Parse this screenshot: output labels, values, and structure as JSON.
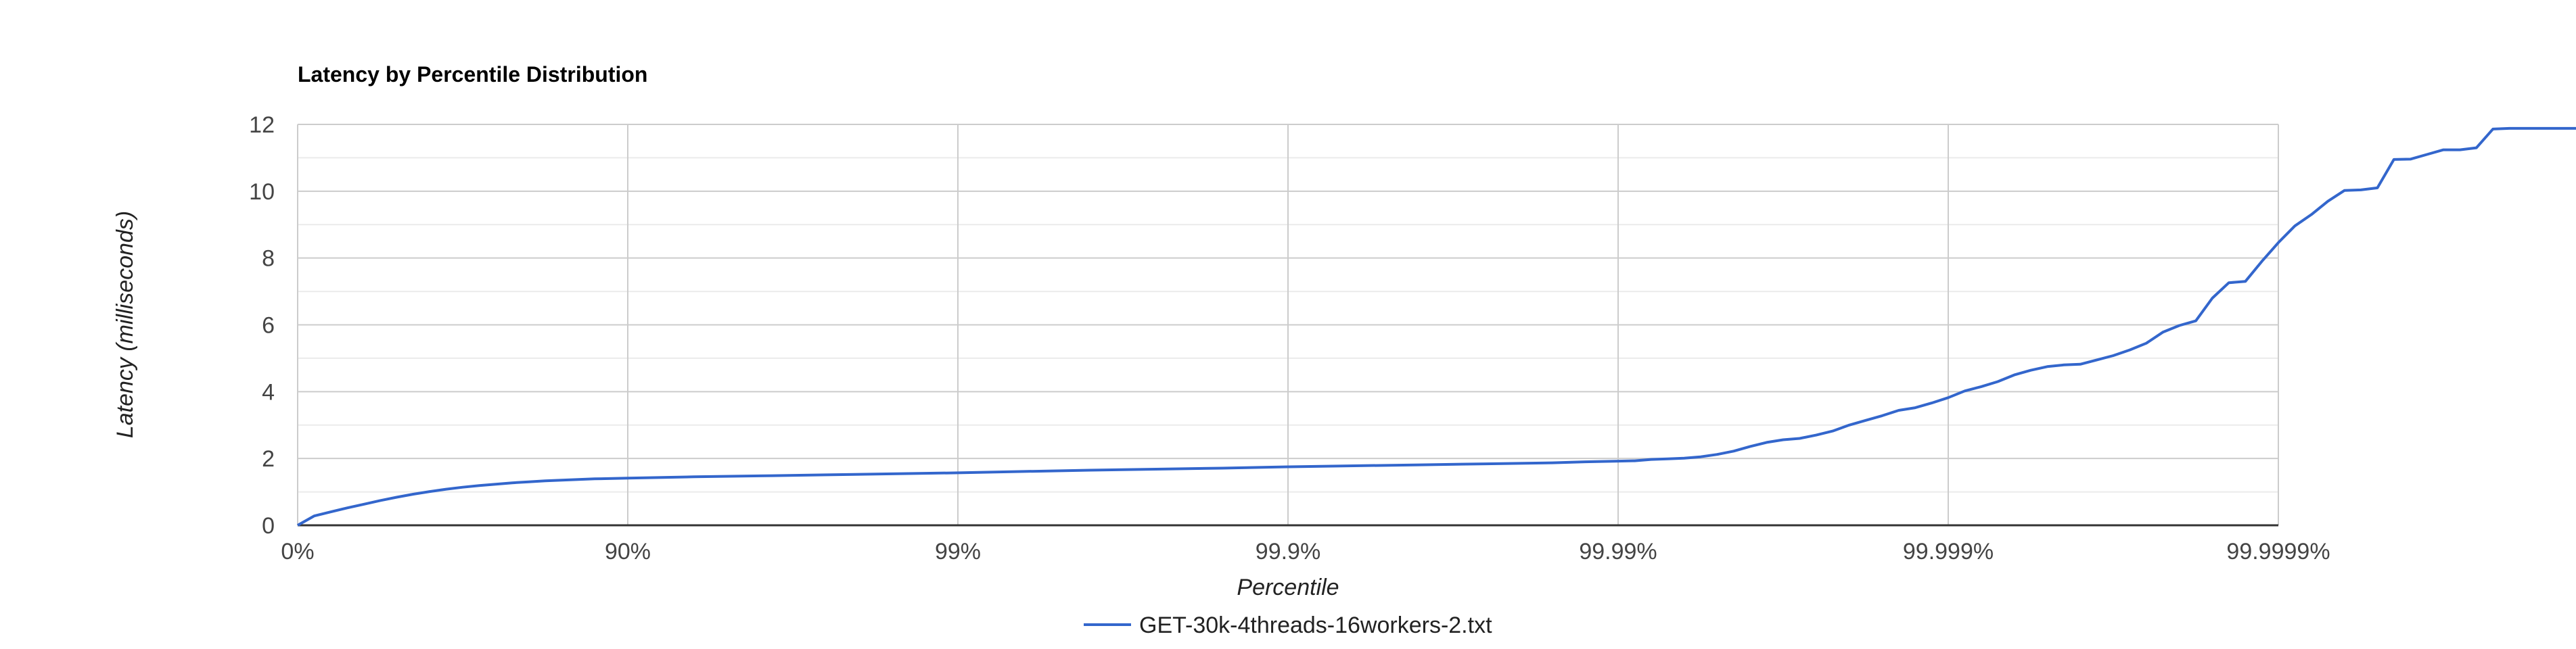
{
  "chart_data": {
    "type": "line",
    "title": "Latency by Percentile Distribution",
    "xlabel": "Percentile",
    "ylabel": "Latency (milliseconds)",
    "x_scale": "log-percentile (1/(1-p))",
    "x_ticks": [
      "0%",
      "90%",
      "99%",
      "99.9%",
      "99.99%",
      "99.999%",
      "99.9999%"
    ],
    "y_ticks": [
      0,
      2,
      4,
      6,
      8,
      10,
      12
    ],
    "ylim": [
      0,
      12
    ],
    "grid": true,
    "legend_position": "bottom",
    "series": [
      {
        "name": "GET-30k-4threads-16workers-2.txt",
        "color": "#3366cc",
        "points": [
          [
            0,
            0.0
          ],
          [
            0.05,
            0.28
          ],
          [
            0.1,
            0.4
          ],
          [
            0.15,
            0.52
          ],
          [
            0.2,
            0.63
          ],
          [
            0.25,
            0.74
          ],
          [
            0.3,
            0.84
          ],
          [
            0.35,
            0.93
          ],
          [
            0.4,
            1.01
          ],
          [
            0.45,
            1.08
          ],
          [
            0.5,
            1.14
          ],
          [
            0.55,
            1.19
          ],
          [
            0.6,
            1.23
          ],
          [
            0.65,
            1.27
          ],
          [
            0.7,
            1.3
          ],
          [
            0.75,
            1.33
          ],
          [
            0.8,
            1.35
          ],
          [
            0.85,
            1.37
          ],
          [
            0.9,
            1.39
          ],
          [
            1.0,
            1.41
          ],
          [
            1.2,
            1.45
          ],
          [
            1.4,
            1.48
          ],
          [
            1.6,
            1.51
          ],
          [
            1.8,
            1.54
          ],
          [
            2.0,
            1.57
          ],
          [
            2.2,
            1.61
          ],
          [
            2.4,
            1.65
          ],
          [
            2.6,
            1.68
          ],
          [
            2.8,
            1.71
          ],
          [
            3.0,
            1.75
          ],
          [
            3.2,
            1.78
          ],
          [
            3.4,
            1.81
          ],
          [
            3.6,
            1.84
          ],
          [
            3.8,
            1.87
          ],
          [
            3.9,
            1.9
          ],
          [
            4.0,
            1.92
          ],
          [
            4.05,
            1.93
          ],
          [
            4.1,
            1.97
          ],
          [
            4.15,
            1.99
          ],
          [
            4.2,
            2.01
          ],
          [
            4.25,
            2.05
          ],
          [
            4.3,
            2.12
          ],
          [
            4.35,
            2.22
          ],
          [
            4.4,
            2.36
          ],
          [
            4.45,
            2.48
          ],
          [
            4.5,
            2.56
          ],
          [
            4.55,
            2.6
          ],
          [
            4.6,
            2.7
          ],
          [
            4.65,
            2.82
          ],
          [
            4.7,
            3.0
          ],
          [
            4.75,
            3.14
          ],
          [
            4.8,
            3.28
          ],
          [
            4.85,
            3.44
          ],
          [
            4.9,
            3.52
          ],
          [
            4.95,
            3.66
          ],
          [
            5.0,
            3.82
          ],
          [
            5.05,
            4.02
          ],
          [
            5.1,
            4.15
          ],
          [
            5.15,
            4.3
          ],
          [
            5.2,
            4.5
          ],
          [
            5.25,
            4.64
          ],
          [
            5.3,
            4.75
          ],
          [
            5.35,
            4.8
          ],
          [
            5.4,
            4.82
          ],
          [
            5.45,
            4.95
          ],
          [
            5.5,
            5.08
          ],
          [
            5.55,
            5.25
          ],
          [
            5.6,
            5.45
          ],
          [
            5.65,
            5.78
          ],
          [
            5.7,
            5.98
          ],
          [
            5.75,
            6.12
          ],
          [
            5.8,
            6.8
          ],
          [
            5.85,
            7.26
          ],
          [
            5.9,
            7.3
          ],
          [
            5.95,
            7.9
          ],
          [
            6.0,
            8.46
          ],
          [
            6.05,
            8.96
          ],
          [
            6.1,
            9.3
          ],
          [
            6.15,
            9.7
          ],
          [
            6.2,
            10.02
          ],
          [
            6.25,
            10.04
          ],
          [
            6.3,
            10.1
          ],
          [
            6.35,
            10.95
          ],
          [
            6.4,
            10.96
          ],
          [
            6.45,
            11.1
          ],
          [
            6.5,
            11.24
          ],
          [
            6.55,
            11.24
          ],
          [
            6.6,
            11.3
          ],
          [
            6.65,
            11.86
          ],
          [
            6.7,
            11.88
          ],
          [
            6.75,
            11.88
          ],
          [
            6.8,
            11.88
          ],
          [
            6.85,
            11.88
          ],
          [
            6.9,
            11.88
          ],
          [
            7.0,
            11.9
          ],
          [
            7.2,
            12.0
          ]
        ]
      }
    ]
  }
}
